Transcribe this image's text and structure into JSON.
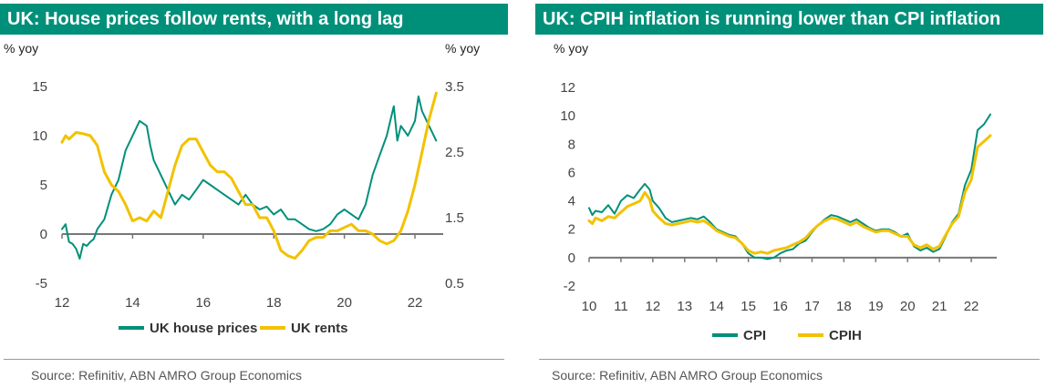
{
  "colors": {
    "teal": "#00907a",
    "yellow": "#f2c200",
    "axis": "#777777",
    "title_bg": "#00907a"
  },
  "charts": [
    {
      "title": "UK: House prices follow rents, with a long lag",
      "source": "Source: Refinitiv, ABN AMRO Group Economics"
    },
    {
      "title": "UK: CPIH inflation is running lower than CPI inflation",
      "source": "Source: Refinitiv, ABN AMRO Group Economics"
    }
  ],
  "chart_data": [
    {
      "type": "line",
      "title": "UK: House prices follow rents, with a long lag",
      "ylabel": "% yoy",
      "y2label": "% yoy",
      "x_range": [
        12,
        22.8
      ],
      "x_ticks": [
        "12",
        "14",
        "16",
        "18",
        "20",
        "22"
      ],
      "ylim": [
        -5,
        15
      ],
      "y_ticks": [
        "15",
        "10",
        "5",
        "0",
        "-5"
      ],
      "y2lim": [
        0.5,
        3.5
      ],
      "y2_ticks": [
        "3.5",
        "2.5",
        "1.5",
        "0.5"
      ],
      "legend_position": "bottom",
      "series": [
        {
          "name": "UK house prices",
          "axis": "left",
          "color": "#00907a",
          "x": [
            12.0,
            12.1,
            12.2,
            12.3,
            12.4,
            12.5,
            12.6,
            12.7,
            12.8,
            12.9,
            13.0,
            13.2,
            13.4,
            13.6,
            13.8,
            14.0,
            14.2,
            14.4,
            14.5,
            14.6,
            14.8,
            15.0,
            15.2,
            15.4,
            15.6,
            15.8,
            16.0,
            16.2,
            16.4,
            16.6,
            16.8,
            17.0,
            17.2,
            17.4,
            17.6,
            17.8,
            18.0,
            18.2,
            18.4,
            18.6,
            18.8,
            19.0,
            19.2,
            19.4,
            19.6,
            19.8,
            20.0,
            20.2,
            20.4,
            20.6,
            20.8,
            21.0,
            21.2,
            21.4,
            21.5,
            21.6,
            21.8,
            22.0,
            22.1,
            22.2,
            22.4,
            22.6
          ],
          "values": [
            0.5,
            1.0,
            -0.8,
            -1.0,
            -1.5,
            -2.5,
            -1.0,
            -1.2,
            -0.8,
            -0.5,
            0.5,
            1.5,
            4.0,
            5.5,
            8.5,
            10.0,
            11.5,
            11.0,
            9.0,
            7.5,
            6.0,
            4.5,
            3.0,
            4.0,
            3.5,
            4.5,
            5.5,
            5.0,
            4.5,
            4.0,
            3.5,
            3.0,
            4.0,
            3.0,
            2.5,
            2.8,
            2.0,
            2.5,
            1.5,
            1.5,
            1.0,
            0.5,
            0.3,
            0.5,
            1.0,
            2.0,
            2.5,
            2.0,
            1.5,
            3.0,
            6.0,
            8.0,
            10.0,
            13.0,
            9.5,
            11.0,
            10.0,
            11.5,
            14.0,
            12.5,
            11.0,
            9.5
          ]
        },
        {
          "name": "UK rents",
          "axis": "right",
          "color": "#f2c200",
          "x": [
            12.0,
            12.1,
            12.2,
            12.4,
            12.6,
            12.8,
            13.0,
            13.2,
            13.4,
            13.6,
            13.8,
            14.0,
            14.2,
            14.4,
            14.6,
            14.8,
            15.0,
            15.2,
            15.4,
            15.6,
            15.8,
            16.0,
            16.2,
            16.4,
            16.6,
            16.8,
            17.0,
            17.2,
            17.4,
            17.6,
            17.8,
            18.0,
            18.2,
            18.4,
            18.6,
            18.8,
            19.0,
            19.2,
            19.4,
            19.6,
            19.8,
            20.0,
            20.2,
            20.4,
            20.6,
            20.8,
            21.0,
            21.2,
            21.4,
            21.6,
            21.8,
            22.0,
            22.2,
            22.4,
            22.6
          ],
          "values": [
            2.65,
            2.75,
            2.7,
            2.8,
            2.78,
            2.75,
            2.6,
            2.2,
            2.0,
            1.9,
            1.7,
            1.45,
            1.5,
            1.45,
            1.6,
            1.5,
            1.9,
            2.3,
            2.6,
            2.7,
            2.7,
            2.5,
            2.3,
            2.2,
            2.2,
            2.1,
            1.9,
            1.7,
            1.7,
            1.5,
            1.5,
            1.3,
            1.0,
            0.92,
            0.88,
            1.0,
            1.15,
            1.2,
            1.2,
            1.3,
            1.3,
            1.35,
            1.4,
            1.3,
            1.3,
            1.25,
            1.15,
            1.1,
            1.15,
            1.3,
            1.6,
            2.0,
            2.5,
            3.0,
            3.4
          ]
        }
      ]
    },
    {
      "type": "line",
      "title": "UK: CPIH inflation is running lower than CPI inflation",
      "ylabel": "% yoy",
      "x_range": [
        10,
        22.8
      ],
      "x_ticks": [
        "10",
        "11",
        "12",
        "13",
        "14",
        "15",
        "16",
        "17",
        "18",
        "19",
        "20",
        "21",
        "22"
      ],
      "ylim": [
        -2,
        12
      ],
      "y_ticks": [
        "12",
        "10",
        "8",
        "6",
        "4",
        "2",
        "0",
        "-2"
      ],
      "legend_position": "bottom",
      "series": [
        {
          "name": "CPI",
          "color": "#00907a",
          "x": [
            10.0,
            10.1,
            10.2,
            10.4,
            10.6,
            10.8,
            11.0,
            11.2,
            11.4,
            11.6,
            11.75,
            11.9,
            12.0,
            12.2,
            12.4,
            12.6,
            12.8,
            13.0,
            13.2,
            13.4,
            13.6,
            13.8,
            14.0,
            14.2,
            14.4,
            14.6,
            14.8,
            15.0,
            15.2,
            15.4,
            15.6,
            15.8,
            16.0,
            16.2,
            16.4,
            16.6,
            16.8,
            17.0,
            17.2,
            17.4,
            17.6,
            17.8,
            18.0,
            18.2,
            18.4,
            18.6,
            18.8,
            19.0,
            19.2,
            19.4,
            19.6,
            19.8,
            20.0,
            20.2,
            20.4,
            20.6,
            20.8,
            21.0,
            21.2,
            21.4,
            21.6,
            21.8,
            22.0,
            22.2,
            22.4,
            22.6
          ],
          "values": [
            3.5,
            3.0,
            3.3,
            3.2,
            3.7,
            3.1,
            4.0,
            4.4,
            4.2,
            4.8,
            5.2,
            4.8,
            4.0,
            3.5,
            2.8,
            2.5,
            2.6,
            2.7,
            2.8,
            2.7,
            2.9,
            2.5,
            2.0,
            1.8,
            1.6,
            1.5,
            1.0,
            0.3,
            0.0,
            0.0,
            -0.1,
            0.0,
            0.3,
            0.5,
            0.6,
            1.0,
            1.2,
            1.8,
            2.3,
            2.7,
            3.0,
            2.9,
            2.7,
            2.5,
            2.7,
            2.4,
            2.1,
            1.9,
            2.0,
            2.0,
            1.8,
            1.5,
            1.7,
            0.8,
            0.5,
            0.7,
            0.4,
            0.6,
            1.5,
            2.5,
            3.1,
            5.1,
            6.2,
            9.0,
            9.4,
            10.1
          ]
        },
        {
          "name": "CPIH",
          "color": "#f2c200",
          "x": [
            10.0,
            10.1,
            10.2,
            10.4,
            10.6,
            10.8,
            11.0,
            11.2,
            11.4,
            11.6,
            11.75,
            11.9,
            12.0,
            12.2,
            12.4,
            12.6,
            12.8,
            13.0,
            13.2,
            13.4,
            13.6,
            13.8,
            14.0,
            14.2,
            14.4,
            14.6,
            14.8,
            15.0,
            15.2,
            15.4,
            15.6,
            15.8,
            16.0,
            16.2,
            16.4,
            16.6,
            16.8,
            17.0,
            17.2,
            17.4,
            17.6,
            17.8,
            18.0,
            18.2,
            18.4,
            18.6,
            18.8,
            19.0,
            19.2,
            19.4,
            19.6,
            19.8,
            20.0,
            20.2,
            20.4,
            20.6,
            20.8,
            21.0,
            21.2,
            21.4,
            21.6,
            21.8,
            22.0,
            22.2,
            22.4,
            22.6
          ],
          "values": [
            2.6,
            2.4,
            2.8,
            2.6,
            2.9,
            2.8,
            3.2,
            3.6,
            3.8,
            4.0,
            4.6,
            4.1,
            3.3,
            2.8,
            2.4,
            2.3,
            2.4,
            2.5,
            2.6,
            2.5,
            2.6,
            2.3,
            1.9,
            1.7,
            1.5,
            1.4,
            1.0,
            0.5,
            0.3,
            0.4,
            0.3,
            0.5,
            0.6,
            0.7,
            0.9,
            1.1,
            1.4,
            1.9,
            2.3,
            2.6,
            2.8,
            2.7,
            2.5,
            2.3,
            2.5,
            2.2,
            2.0,
            1.8,
            1.9,
            1.9,
            1.7,
            1.5,
            1.5,
            0.9,
            0.7,
            0.9,
            0.6,
            0.8,
            1.6,
            2.4,
            2.9,
            4.6,
            5.5,
            7.8,
            8.2,
            8.6
          ]
        }
      ]
    }
  ]
}
